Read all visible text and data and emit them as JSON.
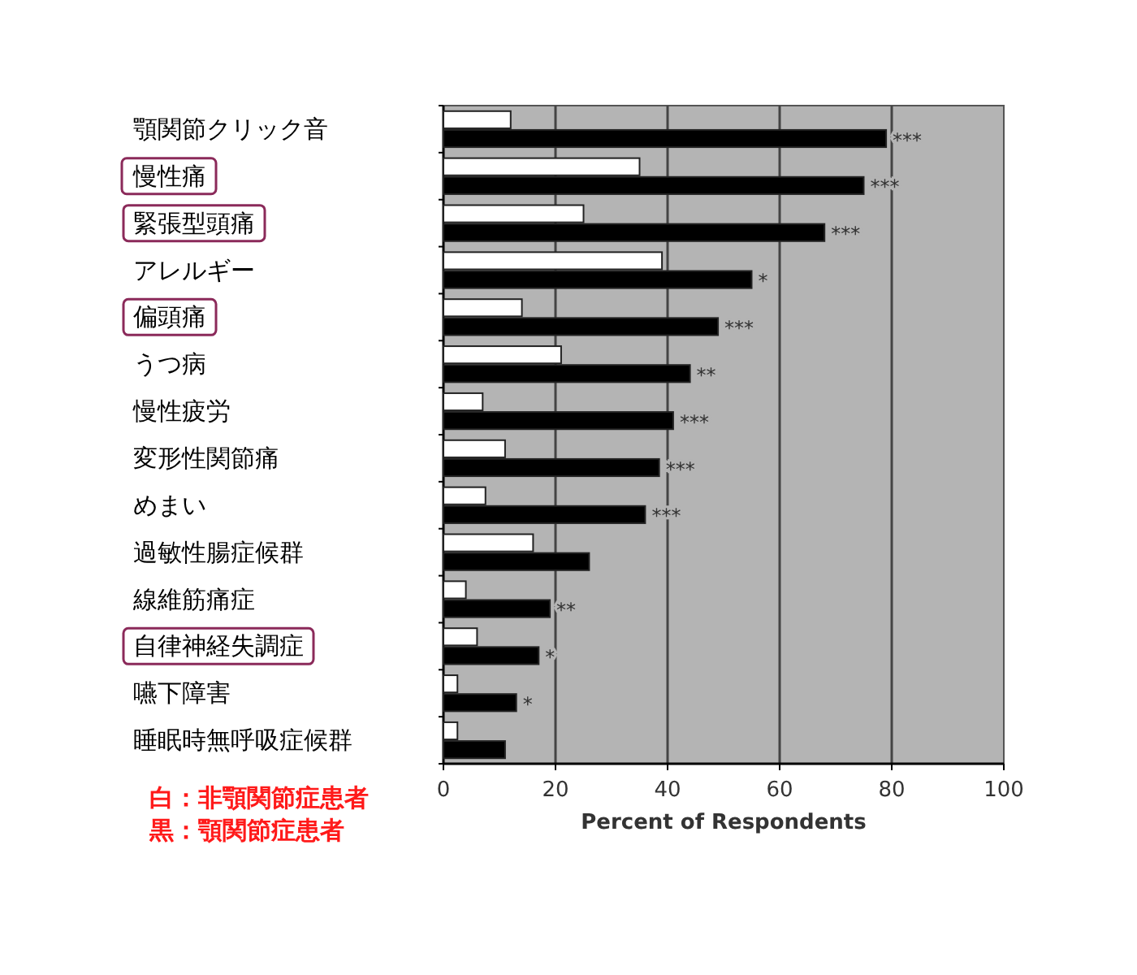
{
  "chart_data": {
    "type": "bar",
    "orientation": "horizontal",
    "xlabel": "Percent of Respondents",
    "categories": [
      "顎関節クリック音",
      "慢性痛",
      "緊張型頭痛",
      "アレルギー",
      "偏頭痛",
      "うつ病",
      "慢性疲労",
      "変形性関節痛",
      "めまい",
      "過敏性腸症候群",
      "線維筋痛症",
      "自律神経失調症",
      "嚥下障害",
      "睡眠時無呼吸症候群"
    ],
    "series": [
      {
        "color": "#ffffff",
        "values": [
          12,
          35,
          25,
          39,
          14,
          21,
          7,
          11,
          7.5,
          16,
          4,
          6,
          2.5,
          2.5
        ]
      },
      {
        "color": "#000000",
        "values": [
          79,
          75,
          68,
          55,
          49,
          44,
          41,
          38.5,
          36,
          26,
          19,
          17,
          13,
          11
        ],
        "value_labels": [
          "***",
          "***",
          "***",
          "*",
          "***",
          "**",
          "***",
          "***",
          "***",
          null,
          "**",
          "*",
          "*",
          null
        ]
      }
    ],
    "xlim": [
      0,
      100
    ],
    "xticks": [
      0,
      20,
      40,
      60,
      80,
      100
    ],
    "grid": "x",
    "annotations": [
      "白：非顎関節症患者",
      "黒：顎関節症患者"
    ]
  }
}
